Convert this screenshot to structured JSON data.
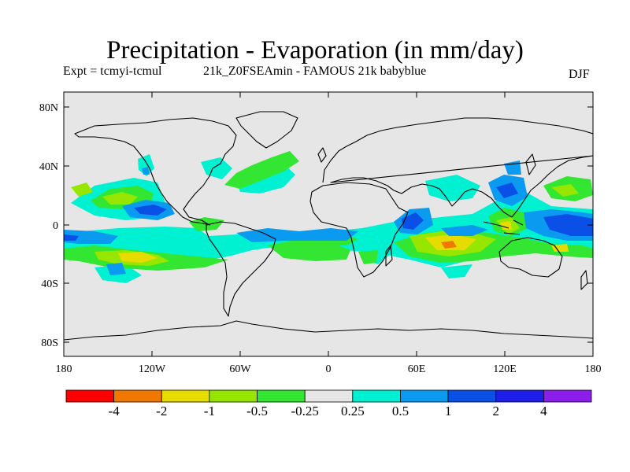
{
  "title": "Precipitation - Evaporation (in mm/day)",
  "subtitle": {
    "expt": "Expt = tcmyi-tcmul",
    "run": "21k_Z0FSEAmin - FAMOUS 21k babyblue"
  },
  "season": "DJF",
  "map": {
    "projection": "cylindrical-equidistant",
    "background_color": "#e6e6e6",
    "y_ticks": [
      "80N",
      "40N",
      "0",
      "40S",
      "80S"
    ],
    "x_ticks": [
      "180",
      "120W",
      "60W",
      "0",
      "60E",
      "120E",
      "180"
    ]
  },
  "colorbar": {
    "colors": [
      "#ff0000",
      "#f07800",
      "#e6dc00",
      "#96e600",
      "#32e632",
      "#e6e6e6",
      "#00f0d2",
      "#0a9bf0",
      "#0a50e6",
      "#1e1eeb",
      "#8c1eeb"
    ],
    "labels": [
      "-4",
      "-2",
      "-1",
      "-0.5",
      "-0.25",
      "0.25",
      "0.5",
      "1",
      "2",
      "4"
    ]
  }
}
